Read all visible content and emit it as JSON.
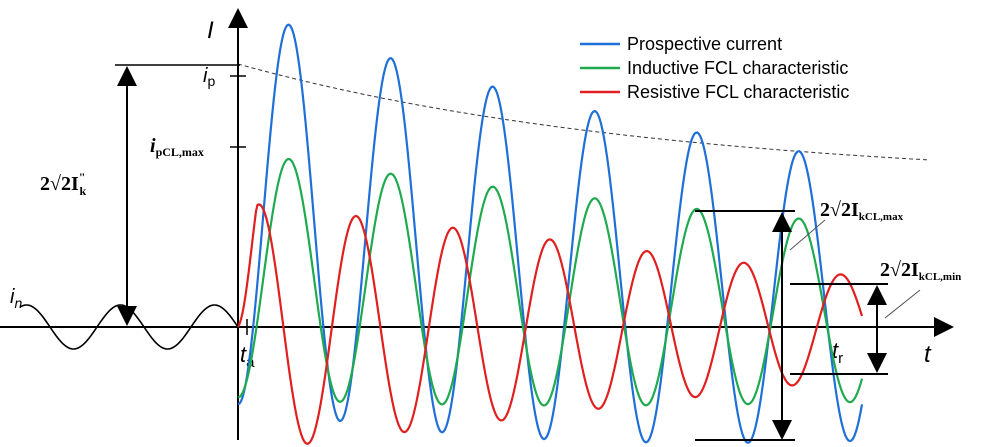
{
  "chart_data": {
    "type": "line",
    "title": "",
    "axes": {
      "y_label": "I",
      "x_label": "t"
    },
    "ticks": {
      "x_ta": "t",
      "x_ta_sub": "a",
      "x_tr": "t",
      "x_tr_sub": "r",
      "y_ip": "i",
      "y_ip_sub": "p",
      "y_ipcl": "i",
      "y_ipcl_sub": "pCL,max"
    },
    "annotations": {
      "in_label": "i",
      "in_sub": "n",
      "left_dim": "2√2I",
      "left_dim_sup": "\"",
      "left_dim_sub": "k",
      "right_dim_max": "2√2I",
      "right_dim_max_sub": "kCL,max",
      "right_dim_min": "2√2I",
      "right_dim_min_sub": "kCL,min"
    },
    "series": [
      {
        "name": "Prospective current",
        "color": "#1f6fd8",
        "peak_start": 1.0,
        "peak_end": 0.7
      },
      {
        "name": "Inductive FCL characteristic",
        "color": "#1faa4f",
        "peak_start": 0.61,
        "peak_end": 0.44
      },
      {
        "name": "Resistive FCL characteristic",
        "color": "#e02020",
        "peak_start": 0.5,
        "peak_end": 0.2
      }
    ],
    "legend_position": "top-right",
    "pre_fault_wave_color": "#000000",
    "envelope_style": "dashed"
  }
}
